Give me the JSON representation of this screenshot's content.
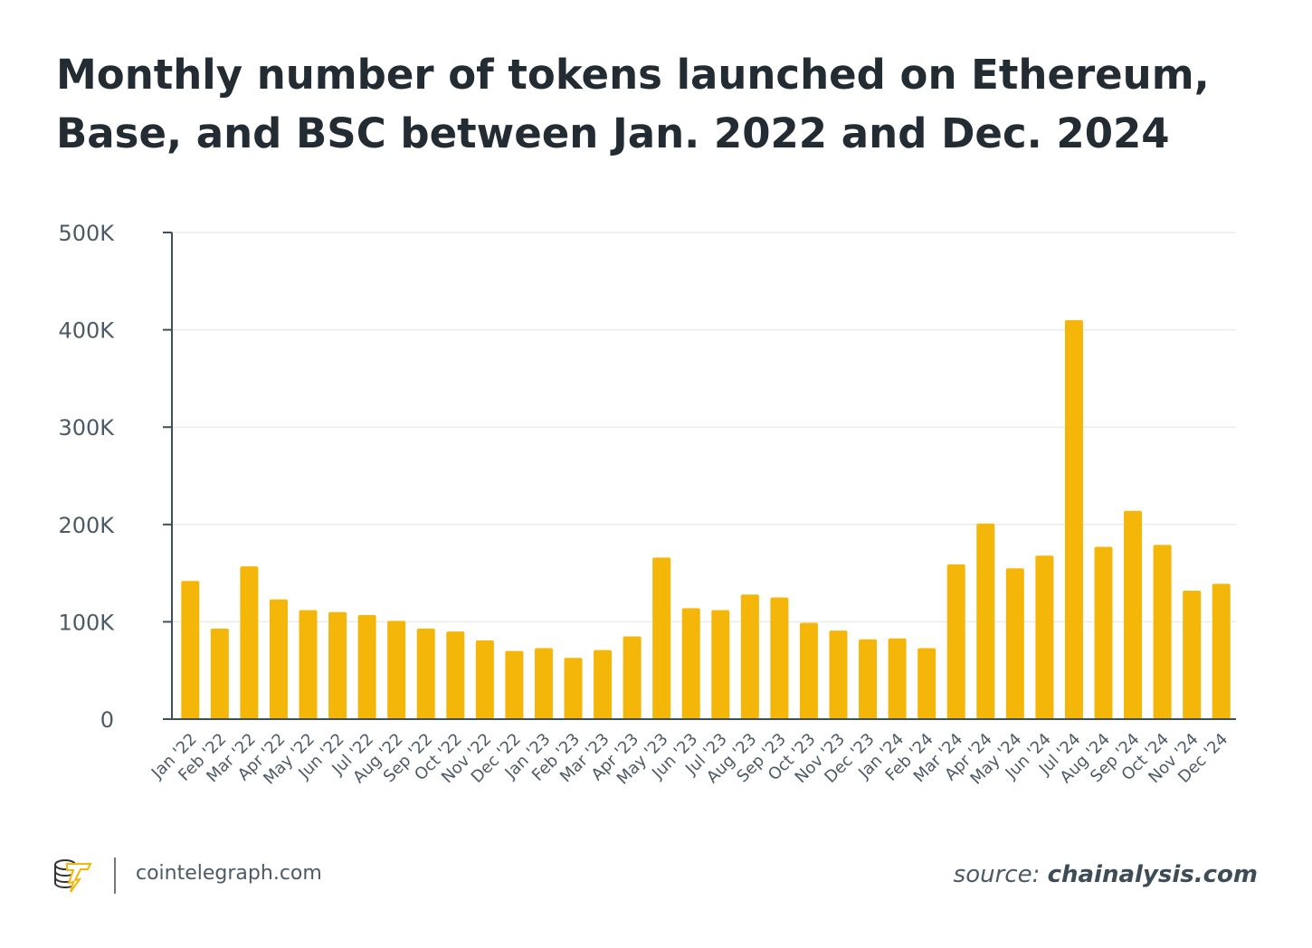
{
  "chart_data": {
    "type": "bar",
    "title": "Monthly number of tokens launched on Ethereum, Base, and BSC between Jan. 2022 and Dec. 2024",
    "xlabel": "",
    "ylabel": "",
    "ylim": [
      0,
      500000
    ],
    "yticks": [
      0,
      100000,
      200000,
      300000,
      400000,
      500000
    ],
    "ytick_labels": [
      "0",
      "100K",
      "200K",
      "300K",
      "400K",
      "500K"
    ],
    "grid": true,
    "bar_color": "#f5b60a",
    "categories": [
      "Jan '22",
      "Feb '22",
      "Mar '22",
      "Apr '22",
      "May '22",
      "Jun '22",
      "Jul '22",
      "Aug '22",
      "Sep '22",
      "Oct '22",
      "Nov '22",
      "Dec '22",
      "Jan '23",
      "Feb '23",
      "Mar '23",
      "Apr '23",
      "May '23",
      "Jun '23",
      "Jul '23",
      "Aug '23",
      "Sep '23",
      "Oct '23",
      "Nov '23",
      "Dec '23",
      "Jan '24",
      "Feb '24",
      "Mar '24",
      "Apr '24",
      "May '24",
      "Jun '24",
      "Jul '24",
      "Aug '24",
      "Sep '24",
      "Oct '24",
      "Nov '24",
      "Dec '24"
    ],
    "values": [
      142000,
      93000,
      157000,
      123000,
      112000,
      110000,
      107000,
      101000,
      93000,
      90000,
      81000,
      70000,
      73000,
      63000,
      71000,
      85000,
      166000,
      114000,
      112000,
      128000,
      125000,
      99000,
      91000,
      82000,
      83000,
      73000,
      159000,
      201000,
      155000,
      168000,
      410000,
      177000,
      214000,
      179000,
      132000,
      139000
    ]
  },
  "footer": {
    "site": "cointelegraph.com",
    "source_prefix": "source: ",
    "source_name": "chainalysis.com"
  },
  "colors": {
    "bar": "#f5b60a",
    "axis": "#3f4f5a",
    "grid": "#ececec",
    "text": "#4c5a66"
  }
}
